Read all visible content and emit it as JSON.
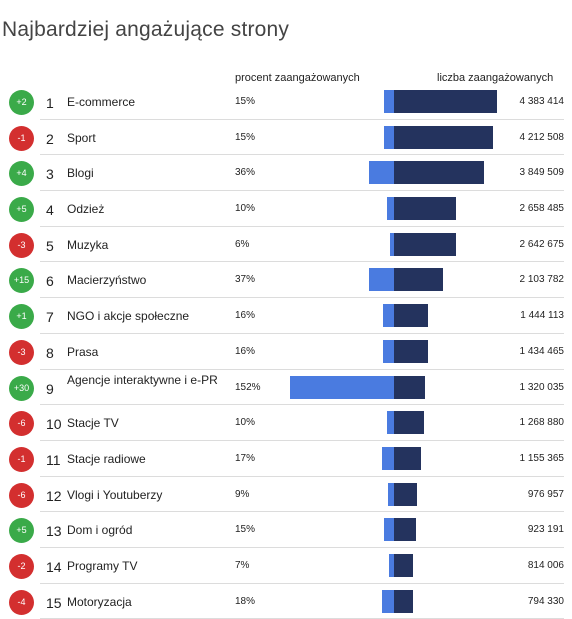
{
  "title": "Najbardziej angażujące strony",
  "headers": {
    "pct": "procent zaangażowanych",
    "count": "liczba zaangażowanych"
  },
  "colors": {
    "up": "#3aaa49",
    "down": "#d32f2f",
    "pct_bar": "#4a7be0",
    "count_bar": "#24335e"
  },
  "rows": [
    {
      "change": "+2",
      "rank": "1",
      "name": "E-commerce",
      "pct": "15%",
      "pct_value": 15,
      "count": "4 383 414",
      "count_value": 4383414
    },
    {
      "change": "-1",
      "rank": "2",
      "name": "Sport",
      "pct": "15%",
      "pct_value": 15,
      "count": "4 212 508",
      "count_value": 4212508
    },
    {
      "change": "+4",
      "rank": "3",
      "name": "Blogi",
      "pct": "36%",
      "pct_value": 36,
      "count": "3 849 509",
      "count_value": 3849509
    },
    {
      "change": "+5",
      "rank": "4",
      "name": "Odzież",
      "pct": "10%",
      "pct_value": 10,
      "count": "2 658 485",
      "count_value": 2658485
    },
    {
      "change": "-3",
      "rank": "5",
      "name": "Muzyka",
      "pct": "6%",
      "pct_value": 6,
      "count": "2 642 675",
      "count_value": 2642675
    },
    {
      "change": "+15",
      "rank": "6",
      "name": "Macierzyństwo",
      "pct": "37%",
      "pct_value": 37,
      "count": "2 103 782",
      "count_value": 2103782
    },
    {
      "change": "+1",
      "rank": "7",
      "name": "NGO i akcje społeczne",
      "pct": "16%",
      "pct_value": 16,
      "count": "1 444 113",
      "count_value": 1444113
    },
    {
      "change": "-3",
      "rank": "8",
      "name": "Prasa",
      "pct": "16%",
      "pct_value": 16,
      "count": "1 434 465",
      "count_value": 1434465
    },
    {
      "change": "+30",
      "rank": "9",
      "name": "Agencje interaktywne i e-PR",
      "pct": "152%",
      "pct_value": 152,
      "count": "1 320 035",
      "count_value": 1320035
    },
    {
      "change": "-6",
      "rank": "10",
      "name": "Stacje TV",
      "pct": "10%",
      "pct_value": 10,
      "count": "1 268 880",
      "count_value": 1268880
    },
    {
      "change": "-1",
      "rank": "11",
      "name": "Stacje radiowe",
      "pct": "17%",
      "pct_value": 17,
      "count": "1 155 365",
      "count_value": 1155365
    },
    {
      "change": "-6",
      "rank": "12",
      "name": "Vlogi i Youtuberzy",
      "pct": "9%",
      "pct_value": 9,
      "count": "976 957",
      "count_value": 976957
    },
    {
      "change": "+5",
      "rank": "13",
      "name": "Dom i ogród",
      "pct": "15%",
      "pct_value": 15,
      "count": "923 191",
      "count_value": 923191
    },
    {
      "change": "-2",
      "rank": "14",
      "name": "Programy TV",
      "pct": "7%",
      "pct_value": 7,
      "count": "814 006",
      "count_value": 814006
    },
    {
      "change": "-4",
      "rank": "15",
      "name": "Motoryzacja",
      "pct": "18%",
      "pct_value": 18,
      "count": "794 330",
      "count_value": 794330
    }
  ]
}
